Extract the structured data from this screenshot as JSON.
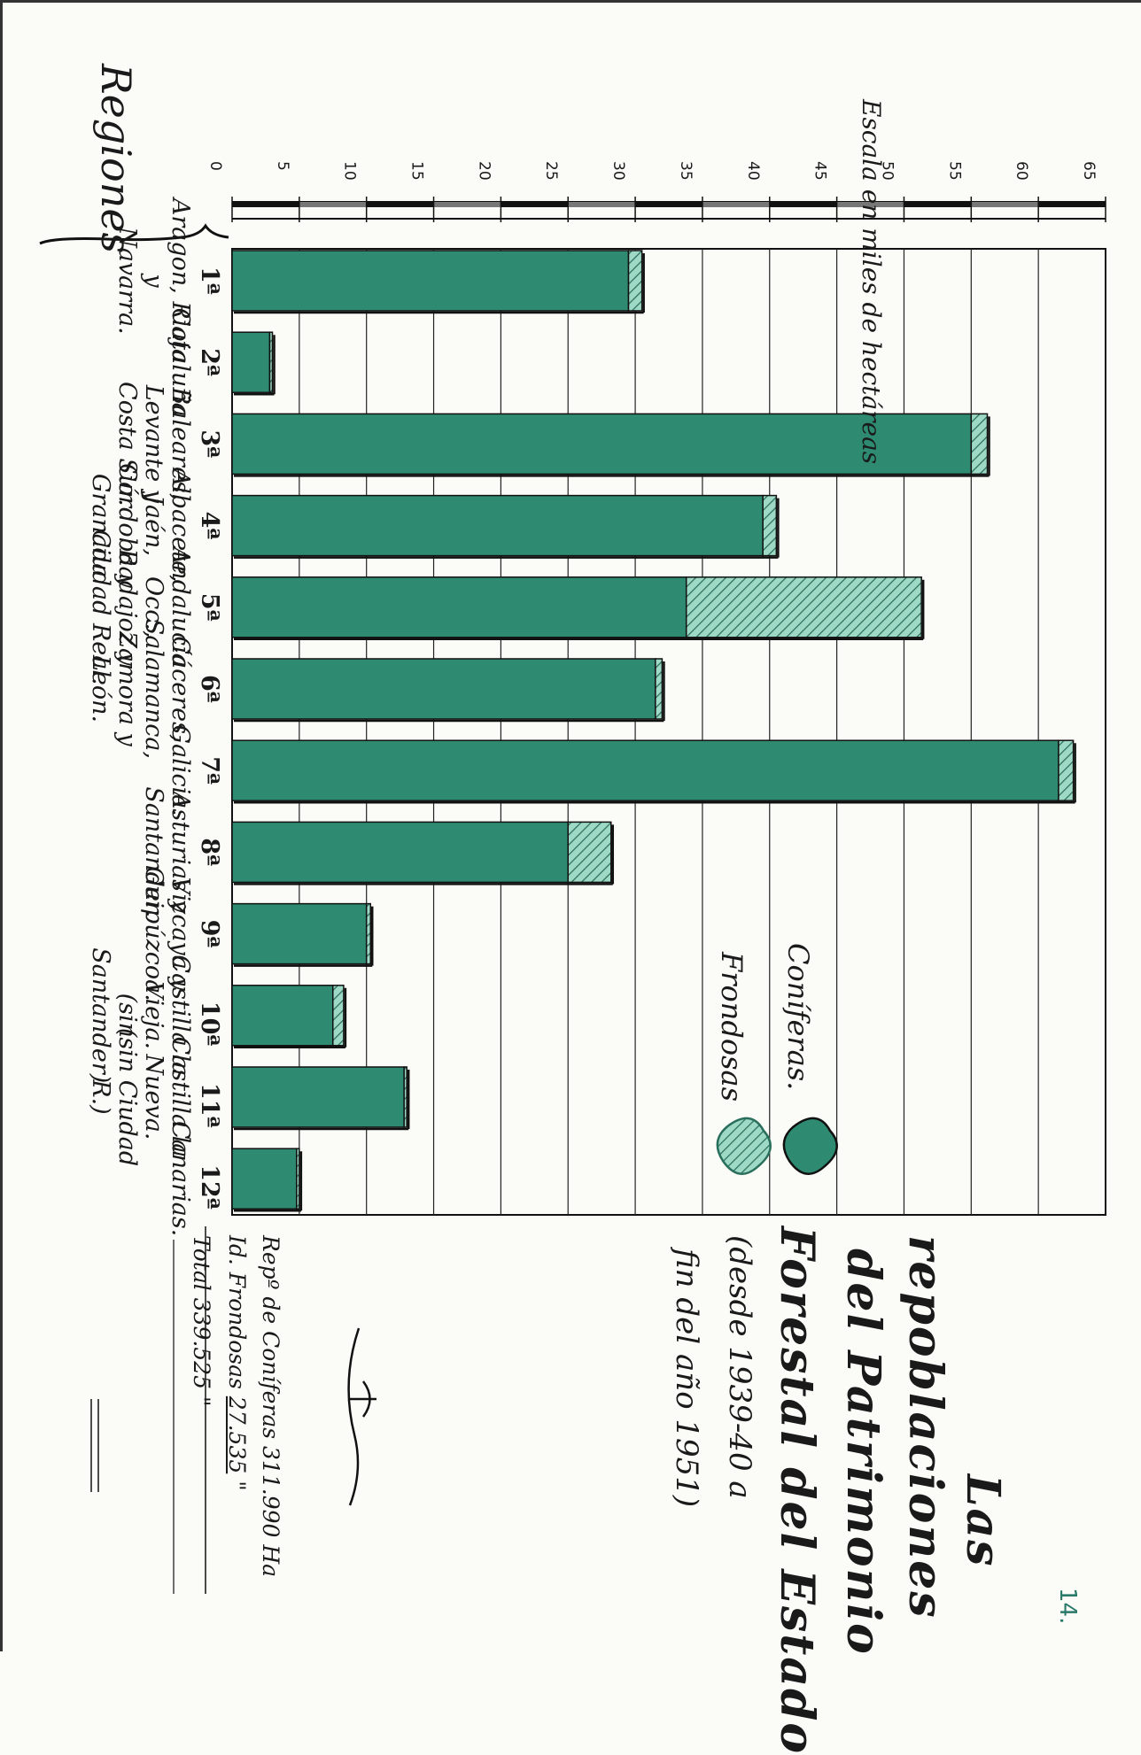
{
  "chart_data": {
    "type": "bar",
    "orientation": "stacked",
    "scale_label": "Escala en miles de hectáreas",
    "ticks": [
      0,
      5,
      10,
      15,
      20,
      25,
      30,
      35,
      40,
      45,
      50,
      55,
      60,
      65
    ],
    "xlim": [
      0,
      65
    ],
    "categories_header": "Regiones",
    "grid": true,
    "categories": [
      {
        "ordinal": "1ª",
        "name": "Aragon, Rioja y\nNavarra."
      },
      {
        "ordinal": "2ª",
        "name": "Cataluña"
      },
      {
        "ordinal": "3ª",
        "name": "Baleares,\nLevante y\nCosta Sur."
      },
      {
        "ordinal": "4ª",
        "name": "Albacete, Jaén,\nCórdoba y\nGranada"
      },
      {
        "ordinal": "5ª",
        "name": "Andalucía Occ.,\nBadajoz y\nCiudad Real."
      },
      {
        "ordinal": "6ª",
        "name": "Cáceres,\nSalamanca,\nZamora y León."
      },
      {
        "ordinal": "7ª",
        "name": "Galicia."
      },
      {
        "ordinal": "8ª",
        "name": "Asturias y\nSantander."
      },
      {
        "ordinal": "9ª",
        "name": "Vizcaya y\nGuipúzcoa."
      },
      {
        "ordinal": "10ª",
        "name": "Castilla la Vieja.\n(sin Santander)"
      },
      {
        "ordinal": "11ª",
        "name": "Castilla la Nueva.\n(sin Ciudad R.)"
      },
      {
        "ordinal": "12ª",
        "name": "Canarias."
      }
    ],
    "series": [
      {
        "name": "Coníferas",
        "color": "#2e8b72",
        "values": [
          29.5,
          2.8,
          55.0,
          39.5,
          33.8,
          31.5,
          61.5,
          25.0,
          10.0,
          7.5,
          12.8,
          4.8
        ]
      },
      {
        "name": "Frondosas",
        "color": "#9ed9c5",
        "values": [
          1.0,
          0.2,
          1.2,
          1.0,
          17.5,
          0.5,
          1.1,
          3.2,
          0.3,
          0.8,
          0.2,
          0.2
        ]
      }
    ],
    "legend": {
      "placement": "right-inside",
      "items": [
        "Coníferas.",
        "Frondosas"
      ]
    }
  },
  "title": {
    "line1": "Las",
    "line2": "repoblaciones",
    "line3": "del Patrimonio",
    "line4": "Forestal del Estado",
    "line5": "(desde 1939-40 a",
    "line6": "fin del año 1951)"
  },
  "totals": {
    "row1": {
      "label": "Repº de Coníferas",
      "value": "311.990",
      "unit": "Ha"
    },
    "row2": {
      "label": "Id. Frondosas",
      "value": "27.535",
      "unit": "\""
    },
    "row3": {
      "label": "Total",
      "value": "339.525",
      "unit": "\""
    }
  },
  "page_number": "14."
}
